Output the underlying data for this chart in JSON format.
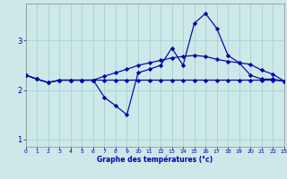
{
  "xlabel": "Graphe des températures (°c)",
  "background_color": "#cce8e8",
  "grid_color": "#aad4d4",
  "line_color": "#0000aa",
  "xlim": [
    0,
    23
  ],
  "ylim": [
    0.85,
    3.75
  ],
  "xticks": [
    0,
    1,
    2,
    3,
    4,
    5,
    6,
    7,
    8,
    9,
    10,
    11,
    12,
    13,
    14,
    15,
    16,
    17,
    18,
    19,
    20,
    21,
    22,
    23
  ],
  "yticks": [
    1,
    2,
    3
  ],
  "series1": [
    2.3,
    2.22,
    2.15,
    2.2,
    2.2,
    2.2,
    2.2,
    1.85,
    1.68,
    1.5,
    2.35,
    2.42,
    2.5,
    2.85,
    2.5,
    3.35,
    3.55,
    3.25,
    2.7,
    2.55,
    2.3,
    2.22,
    2.22,
    2.18
  ],
  "series2": [
    2.3,
    2.22,
    2.15,
    2.2,
    2.2,
    2.2,
    2.2,
    2.2,
    2.2,
    2.2,
    2.2,
    2.2,
    2.2,
    2.2,
    2.2,
    2.2,
    2.2,
    2.2,
    2.2,
    2.2,
    2.2,
    2.2,
    2.2,
    2.18
  ],
  "series3": [
    2.3,
    2.22,
    2.15,
    2.2,
    2.2,
    2.2,
    2.2,
    2.28,
    2.35,
    2.42,
    2.5,
    2.55,
    2.6,
    2.65,
    2.68,
    2.7,
    2.68,
    2.62,
    2.58,
    2.55,
    2.52,
    2.4,
    2.32,
    2.18
  ]
}
